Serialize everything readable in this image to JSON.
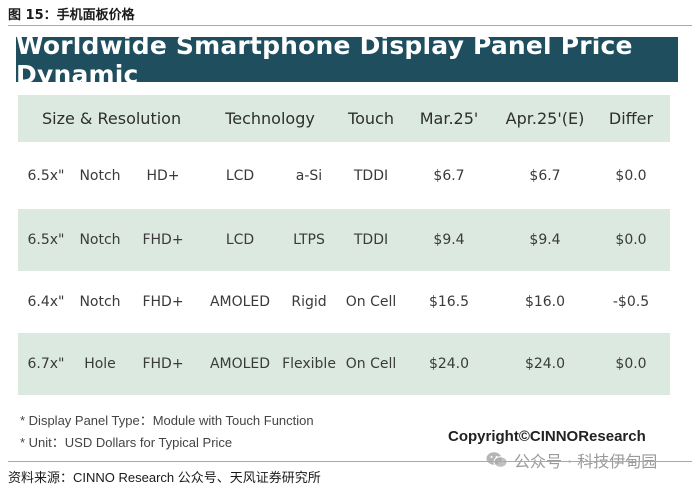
{
  "caption": "图 15：手机面板价格",
  "banner_title": "Worldwide Smartphone Display Panel Price Dynamic",
  "table": {
    "headers": {
      "size_resolution": "Size & Resolution",
      "technology": "Technology",
      "touch": "Touch",
      "mar25": "Mar.25'",
      "apr25": "Apr.25'(E)",
      "differ": "Differ"
    },
    "rows": [
      {
        "size": "6.5x\"",
        "form": "Notch",
        "res": "HD+",
        "tech": "LCD",
        "sub": "a-Si",
        "touch": "TDDI",
        "mar": "$6.7",
        "apr": "$6.7",
        "differ": "$0.0"
      },
      {
        "size": "6.5x\"",
        "form": "Notch",
        "res": "FHD+",
        "tech": "LCD",
        "sub": "LTPS",
        "touch": "TDDI",
        "mar": "$9.4",
        "apr": "$9.4",
        "differ": "$0.0"
      },
      {
        "size": "6.4x\"",
        "form": "Notch",
        "res": "FHD+",
        "tech": "AMOLED",
        "sub": "Rigid",
        "touch": "On Cell",
        "mar": "$16.5",
        "apr": "$16.0",
        "differ": "-$0.5"
      },
      {
        "size": "6.7x\"",
        "form": "Hole",
        "res": "FHD+",
        "tech": "AMOLED",
        "sub": "Flexible",
        "touch": "On Cell",
        "mar": "$24.0",
        "apr": "$24.0",
        "differ": "$0.0"
      }
    ]
  },
  "footnotes": {
    "note1": "* Display Panel Type：Module with Touch Function",
    "note2": "* Unit：USD Dollars for Typical Price"
  },
  "copyright": "Copyright©CINNOResearch",
  "source": "资料来源：CINNO Research 公众号、天风证券研究所",
  "watermark": "公众号 · 科技伊甸园",
  "colors": {
    "banner": "#1f4e5f",
    "row_tint": "#dce9e0",
    "rule": "#c8a27a"
  }
}
